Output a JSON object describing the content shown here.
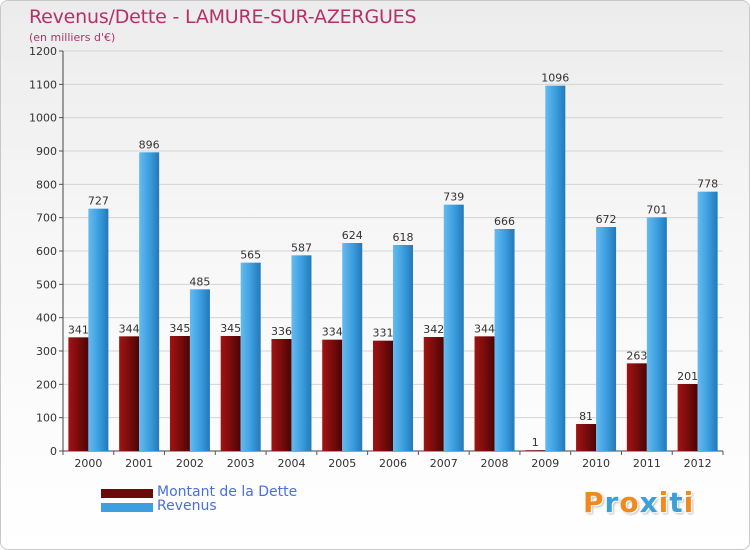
{
  "title": "Revenus/Dette - LAMURE-SUR-AZERGUES",
  "subtitle": "(en milliers d'€)",
  "colors": {
    "dette": "#6b0a0a",
    "revenus": "#3d9fe0",
    "title": "#b5306a"
  },
  "legend": [
    {
      "label": "Montant de la Dette",
      "color": "#6b0a0a"
    },
    {
      "label": "Revenus",
      "color": "#3d9fe0"
    }
  ],
  "logo": {
    "text": "Proxiti",
    "letter_colors": [
      "#f08a1c",
      "#3aa0d8",
      "#f08a1c",
      "#3aa0d8",
      "#f08a1c",
      "#3aa0d8",
      "#f08a1c"
    ]
  },
  "chart_data": {
    "type": "bar",
    "categories": [
      "2000",
      "2001",
      "2002",
      "2003",
      "2004",
      "2005",
      "2006",
      "2007",
      "2008",
      "2009",
      "2010",
      "2011",
      "2012"
    ],
    "series": [
      {
        "name": "Montant de la Dette",
        "values": [
          341,
          344,
          345,
          345,
          336,
          334,
          331,
          342,
          344,
          1,
          81,
          263,
          201
        ]
      },
      {
        "name": "Revenus",
        "values": [
          727,
          896,
          485,
          565,
          587,
          624,
          618,
          739,
          666,
          1096,
          672,
          701,
          778
        ]
      }
    ],
    "ylim": [
      0,
      1200
    ],
    "yticks": [
      0,
      100,
      200,
      300,
      400,
      500,
      600,
      700,
      800,
      900,
      1000,
      1100,
      1200
    ],
    "grid": true,
    "legend_position": "bottom-left"
  }
}
